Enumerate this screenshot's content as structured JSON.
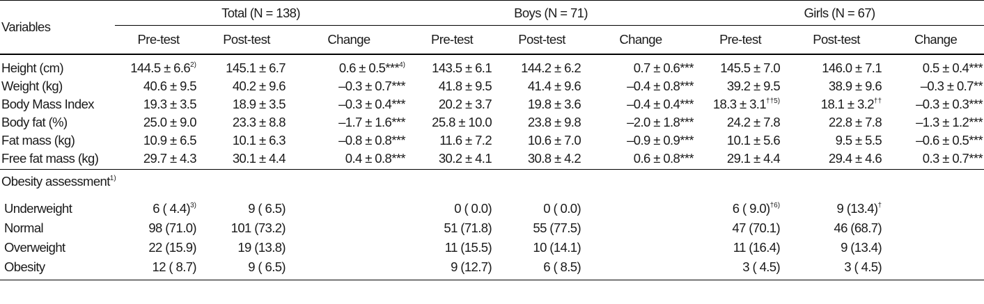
{
  "header": {
    "variables": "Variables",
    "groups": [
      "Total (N = 138)",
      "Boys (N = 71)",
      "Girls (N = 67)"
    ],
    "subcols": [
      "Pre-test",
      "Post-test",
      "Change"
    ]
  },
  "rows": [
    {
      "label": "Height (cm)",
      "cells": [
        {
          "t": "144.5 ± 6.6",
          "s": "2)"
        },
        {
          "t": "145.1 ± 6.7"
        },
        {
          "t": "0.6 ± 0.5***",
          "s": "4)"
        },
        {
          "t": "143.5 ±  6.1"
        },
        {
          "t": "144.2 ± 6.2"
        },
        {
          "t": "0.7 ± 0.6***"
        },
        {
          "t": "145.5 ± 7.0"
        },
        {
          "t": "146.0 ± 7.1"
        },
        {
          "t": "0.5 ± 0.4***"
        }
      ]
    },
    {
      "label": "Weight (kg)",
      "cells": [
        {
          "t": "40.6 ± 9.5"
        },
        {
          "t": "40.2 ± 9.6"
        },
        {
          "t": "–0.3 ± 0.7***"
        },
        {
          "t": "41.8 ± 9.5"
        },
        {
          "t": "41.4 ± 9.6"
        },
        {
          "t": "–0.4 ± 0.8***"
        },
        {
          "t": "39.2 ± 9.5"
        },
        {
          "t": "38.9 ± 9.6"
        },
        {
          "t": "–0.3 ± 0.7**"
        }
      ]
    },
    {
      "label": "Body Mass Index",
      "cells": [
        {
          "t": "19.3 ± 3.5"
        },
        {
          "t": "18.9 ± 3.5"
        },
        {
          "t": "–0.3 ± 0.4***"
        },
        {
          "t": "20.2 ± 3.7"
        },
        {
          "t": "19.8 ± 3.6"
        },
        {
          "t": "–0.4 ± 0.4***"
        },
        {
          "t": "18.3 ± 3.1",
          "s": "††5)"
        },
        {
          "t": "18.1 ± 3.2",
          "s": "††"
        },
        {
          "t": "–0.3 ± 0.3***"
        }
      ]
    },
    {
      "label": "Body fat (%)",
      "cells": [
        {
          "t": "25.0 ± 9.0"
        },
        {
          "t": "23.3 ± 8.8"
        },
        {
          "t": "–1.7 ± 1.6***"
        },
        {
          "t": "25.8 ± 10.0"
        },
        {
          "t": "23.8 ± 9.8"
        },
        {
          "t": "–2.0 ± 1.8***"
        },
        {
          "t": "24.2 ± 7.8"
        },
        {
          "t": "22.8 ± 7.8"
        },
        {
          "t": "–1.3 ± 1.2***"
        }
      ]
    },
    {
      "label": "Fat mass (kg)",
      "cells": [
        {
          "t": "10.9 ± 6.5"
        },
        {
          "t": "10.1 ± 6.3"
        },
        {
          "t": "–0.8 ± 0.8***"
        },
        {
          "t": "11.6 ± 7.2"
        },
        {
          "t": "10.6 ± 7.0"
        },
        {
          "t": "–0.9 ± 0.9***"
        },
        {
          "t": "10.1 ± 5.6"
        },
        {
          "t": "9.5 ± 5.5"
        },
        {
          "t": "–0.6 ± 0.5***"
        }
      ]
    },
    {
      "label": "Free fat mass (kg)",
      "cells": [
        {
          "t": "29.7 ± 4.3"
        },
        {
          "t": "30.1 ± 4.4"
        },
        {
          "t": "0.4 ± 0.8***"
        },
        {
          "t": "30.2 ± 4.1"
        },
        {
          "t": "30.8 ± 4.2"
        },
        {
          "t": "0.6 ± 0.8***"
        },
        {
          "t": "29.1 ± 4.4"
        },
        {
          "t": "29.4 ± 4.6"
        },
        {
          "t": "0.3 ± 0.7***"
        }
      ]
    }
  ],
  "obesity": {
    "title": "Obesity assessment",
    "title_sup": "1)",
    "rows": [
      {
        "label": "Underweight",
        "cells": [
          {
            "t": "6 (  4.4)",
            "s": "3)"
          },
          {
            "t": "9 (  6.5)"
          },
          {
            "t": ""
          },
          {
            "t": "0 (  0.0)"
          },
          {
            "t": "0 (  0.0)"
          },
          {
            "t": ""
          },
          {
            "t": "6 (  9.0)",
            "s": "†6)"
          },
          {
            "t": "9 (13.4)",
            "s": "†"
          },
          {
            "t": ""
          }
        ]
      },
      {
        "label": "Normal",
        "cells": [
          {
            "t": "98 (71.0)"
          },
          {
            "t": "101 (73.2)"
          },
          {
            "t": ""
          },
          {
            "t": "51 (71.8)"
          },
          {
            "t": "55 (77.5)"
          },
          {
            "t": ""
          },
          {
            "t": "47 (70.1)"
          },
          {
            "t": "46 (68.7)"
          },
          {
            "t": ""
          }
        ]
      },
      {
        "label": "Overweight",
        "cells": [
          {
            "t": "22 (15.9)"
          },
          {
            "t": "19 (13.8)"
          },
          {
            "t": ""
          },
          {
            "t": "11 (15.5)"
          },
          {
            "t": "10 (14.1)"
          },
          {
            "t": ""
          },
          {
            "t": "11 (16.4)"
          },
          {
            "t": "9 (13.4)"
          },
          {
            "t": ""
          }
        ]
      },
      {
        "label": "Obesity",
        "cells": [
          {
            "t": "12 (  8.7)"
          },
          {
            "t": "9 (  6.5)"
          },
          {
            "t": ""
          },
          {
            "t": "9 (12.7)"
          },
          {
            "t": "6 (  8.5)"
          },
          {
            "t": ""
          },
          {
            "t": "3 (  4.5)"
          },
          {
            "t": "3 (  4.5)"
          },
          {
            "t": ""
          }
        ]
      }
    ]
  }
}
